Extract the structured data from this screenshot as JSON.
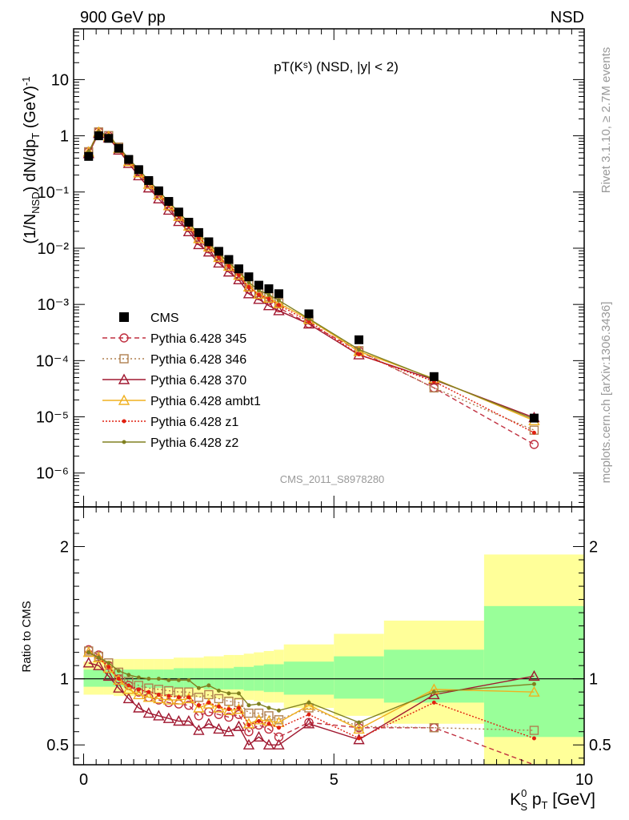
{
  "header": {
    "left": "900 GeV pp",
    "right": "NSD"
  },
  "side": {
    "rivet": "Rivet 3.1.10, ≥ 2.7M events",
    "mcplots": "mcplots.cern.ch [arXiv:1306.3436]"
  },
  "watermark": "CMS_2011_S8978280",
  "chart_data": {
    "type": "scatter",
    "title": "pT(Kˢ) (NSD, |y| < 2)",
    "main": {
      "ylabel": "(1/N_NSD) dN/dp_T (GeV)^-1",
      "ylog": true,
      "ylim": [
        2.5e-07,
        80
      ],
      "xlim": [
        -0.2,
        10
      ],
      "yticks": [
        {
          "v": 1e-06,
          "label": "10⁻⁶"
        },
        {
          "v": 1e-05,
          "label": "10⁻⁵"
        },
        {
          "v": 0.0001,
          "label": "10⁻⁴"
        },
        {
          "v": 0.001,
          "label": "10⁻³"
        },
        {
          "v": 0.01,
          "label": "10⁻²"
        },
        {
          "v": 0.1,
          "label": "10⁻¹"
        },
        {
          "v": 1,
          "label": "1"
        },
        {
          "v": 10,
          "label": "10"
        }
      ]
    },
    "ratio": {
      "ylabel": "Ratio to CMS",
      "ylim": [
        0.35,
        2.3
      ],
      "yticks": [
        0.5,
        1,
        2
      ],
      "bands": [
        {
          "x0": 0.0,
          "x1": 0.2,
          "y": [
            0.88,
            1.13
          ],
          "g": [
            0.94,
            1.07
          ]
        },
        {
          "x0": 0.2,
          "x1": 0.4,
          "y": [
            0.88,
            1.13
          ],
          "g": [
            0.94,
            1.07
          ]
        },
        {
          "x0": 0.4,
          "x1": 0.6,
          "y": [
            0.88,
            1.14
          ],
          "g": [
            0.94,
            1.07
          ]
        },
        {
          "x0": 0.6,
          "x1": 0.8,
          "y": [
            0.87,
            1.15
          ],
          "g": [
            0.94,
            1.07
          ]
        },
        {
          "x0": 0.8,
          "x1": 1.0,
          "y": [
            0.87,
            1.15
          ],
          "g": [
            0.93,
            1.07
          ]
        },
        {
          "x0": 1.0,
          "x1": 1.2,
          "y": [
            0.87,
            1.15
          ],
          "g": [
            0.93,
            1.07
          ]
        },
        {
          "x0": 1.2,
          "x1": 1.4,
          "y": [
            0.86,
            1.15
          ],
          "g": [
            0.93,
            1.07
          ]
        },
        {
          "x0": 1.4,
          "x1": 1.6,
          "y": [
            0.86,
            1.15
          ],
          "g": [
            0.93,
            1.07
          ]
        },
        {
          "x0": 1.6,
          "x1": 1.8,
          "y": [
            0.86,
            1.15
          ],
          "g": [
            0.93,
            1.07
          ]
        },
        {
          "x0": 1.8,
          "x1": 2.0,
          "y": [
            0.86,
            1.16
          ],
          "g": [
            0.93,
            1.08
          ]
        },
        {
          "x0": 2.0,
          "x1": 2.2,
          "y": [
            0.86,
            1.16
          ],
          "g": [
            0.93,
            1.08
          ]
        },
        {
          "x0": 2.2,
          "x1": 2.4,
          "y": [
            0.86,
            1.16
          ],
          "g": [
            0.93,
            1.08
          ]
        },
        {
          "x0": 2.4,
          "x1": 2.6,
          "y": [
            0.85,
            1.17
          ],
          "g": [
            0.92,
            1.08
          ]
        },
        {
          "x0": 2.6,
          "x1": 2.8,
          "y": [
            0.85,
            1.17
          ],
          "g": [
            0.92,
            1.08
          ]
        },
        {
          "x0": 2.8,
          "x1": 3.0,
          "y": [
            0.85,
            1.18
          ],
          "g": [
            0.92,
            1.08
          ]
        },
        {
          "x0": 3.0,
          "x1": 3.2,
          "y": [
            0.84,
            1.18
          ],
          "g": [
            0.92,
            1.09
          ]
        },
        {
          "x0": 3.2,
          "x1": 3.4,
          "y": [
            0.84,
            1.19
          ],
          "g": [
            0.91,
            1.09
          ]
        },
        {
          "x0": 3.4,
          "x1": 3.6,
          "y": [
            0.83,
            1.2
          ],
          "g": [
            0.91,
            1.1
          ]
        },
        {
          "x0": 3.6,
          "x1": 3.8,
          "y": [
            0.82,
            1.21
          ],
          "g": [
            0.9,
            1.11
          ]
        },
        {
          "x0": 3.8,
          "x1": 4.0,
          "y": [
            0.82,
            1.22
          ],
          "g": [
            0.9,
            1.11
          ]
        },
        {
          "x0": 4.0,
          "x1": 5.0,
          "y": [
            0.78,
            1.26
          ],
          "g": [
            0.88,
            1.13
          ]
        },
        {
          "x0": 5.0,
          "x1": 6.0,
          "y": [
            0.72,
            1.34
          ],
          "g": [
            0.85,
            1.17
          ]
        },
        {
          "x0": 6.0,
          "x1": 8.0,
          "y": [
            0.66,
            1.44
          ],
          "g": [
            0.82,
            1.22
          ]
        },
        {
          "x0": 8.0,
          "x1": 10.0,
          "y": [
            0.35,
            1.94
          ],
          "g": [
            0.56,
            1.55
          ]
        }
      ]
    },
    "x": [
      0.1,
      0.3,
      0.5,
      0.7,
      0.9,
      1.1,
      1.3,
      1.5,
      1.7,
      1.9,
      2.1,
      2.3,
      2.5,
      2.7,
      2.9,
      3.1,
      3.3,
      3.5,
      3.7,
      3.9,
      4.5,
      5.5,
      7.0,
      9.0
    ],
    "xticks": [
      0,
      5,
      10
    ],
    "xlabel": "K⁰ₛ pₜ [GeV]",
    "data": {
      "name": "CMS",
      "values": [
        0.43,
        1.0,
        0.9,
        0.6,
        0.38,
        0.25,
        0.16,
        0.105,
        0.068,
        0.044,
        0.029,
        0.019,
        0.013,
        0.0088,
        0.0063,
        0.0043,
        0.0031,
        0.0022,
        0.0019,
        0.00155,
        0.00068,
        0.000235,
        5.2e-05,
        9.5e-06
      ]
    },
    "series": [
      {
        "name": "Pythia 6.428 345",
        "color": "#c03040",
        "marker": "circle",
        "dash": "6,4",
        "ratio": [
          1.22,
          1.18,
          1.1,
          1.0,
          0.95,
          0.9,
          0.86,
          0.84,
          0.82,
          0.81,
          0.8,
          0.72,
          0.75,
          0.73,
          0.71,
          0.73,
          0.6,
          0.65,
          0.62,
          0.56,
          0.67,
          0.63,
          0.63,
          0.34
        ]
      },
      {
        "name": "Pythia 6.428 346",
        "color": "#b08050",
        "marker": "square",
        "dash": "2,3",
        "ratio": [
          1.21,
          1.17,
          1.12,
          1.05,
          0.98,
          0.95,
          0.93,
          0.92,
          0.91,
          0.9,
          0.9,
          0.86,
          0.88,
          0.85,
          0.83,
          0.82,
          0.74,
          0.74,
          0.72,
          0.69,
          0.78,
          0.64,
          0.63,
          0.61
        ]
      },
      {
        "name": "Pythia 6.428 370",
        "color": "#a01830",
        "marker": "triangle",
        "dash": "",
        "ratio": [
          1.12,
          1.1,
          1.02,
          0.93,
          0.85,
          0.78,
          0.74,
          0.72,
          0.7,
          0.68,
          0.68,
          0.61,
          0.66,
          0.62,
          0.6,
          0.64,
          0.5,
          0.56,
          0.5,
          0.5,
          0.66,
          0.54,
          0.88,
          1.02
        ]
      },
      {
        "name": "Pythia 6.428 ambt1",
        "color": "#f0b020",
        "marker": "triangle",
        "dash": "",
        "ratio": [
          1.2,
          1.16,
          1.08,
          0.99,
          0.92,
          0.88,
          0.86,
          0.85,
          0.84,
          0.84,
          0.85,
          0.78,
          0.81,
          0.78,
          0.76,
          0.77,
          0.66,
          0.69,
          0.68,
          0.67,
          0.8,
          0.62,
          0.92,
          0.9
        ]
      },
      {
        "name": "Pythia 6.428 z1",
        "color": "#e02010",
        "marker": "dot",
        "dash": "2,2",
        "ratio": [
          1.2,
          1.16,
          1.09,
          1.0,
          0.95,
          0.92,
          0.9,
          0.88,
          0.87,
          0.86,
          0.86,
          0.8,
          0.82,
          0.79,
          0.77,
          0.78,
          0.65,
          0.68,
          0.66,
          0.63,
          0.73,
          0.55,
          0.82,
          0.55
        ]
      },
      {
        "name": "Pythia 6.428 z2",
        "color": "#808020",
        "marker": "dot",
        "dash": "",
        "ratio": [
          1.2,
          1.16,
          1.12,
          1.06,
          1.03,
          1.01,
          1.0,
          1.0,
          0.99,
          0.99,
          0.99,
          0.93,
          0.95,
          0.91,
          0.89,
          0.89,
          0.8,
          0.81,
          0.78,
          0.76,
          0.82,
          0.67,
          0.9,
          0.96
        ]
      }
    ]
  }
}
